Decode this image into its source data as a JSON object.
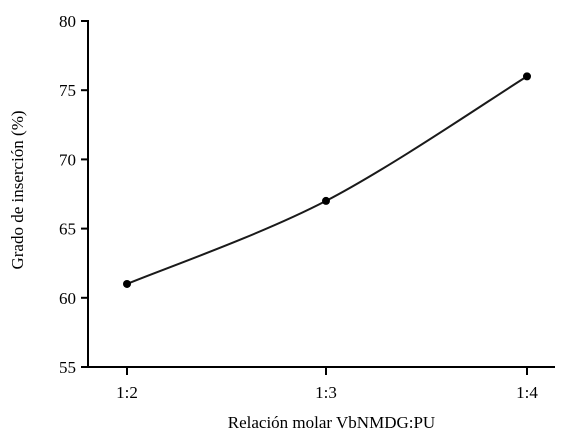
{
  "chart_data": {
    "type": "line",
    "categories": [
      "1:2",
      "1:3",
      "1:4"
    ],
    "values": [
      61,
      67,
      76
    ],
    "title": "",
    "xlabel": "Relación molar VbNMDG:PU",
    "ylabel": "Grado de inserción (%)",
    "ylim": [
      55,
      80
    ],
    "yticks": [
      55,
      60,
      65,
      70,
      75,
      80
    ],
    "grid": false,
    "legend": "none",
    "line_color": "#1a1a1a",
    "marker_color": "#000000"
  }
}
